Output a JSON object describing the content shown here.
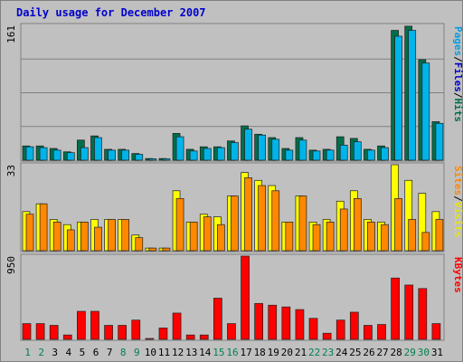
{
  "chart_data": {
    "title": "Daily usage for December 2007",
    "type": "bar",
    "categories": [
      "1",
      "2",
      "3",
      "4",
      "5",
      "6",
      "7",
      "8",
      "9",
      "10",
      "11",
      "12",
      "13",
      "14",
      "15",
      "16",
      "17",
      "18",
      "19",
      "20",
      "21",
      "22",
      "23",
      "24",
      "25",
      "26",
      "27",
      "28",
      "29",
      "30",
      "31"
    ],
    "weekend_days": [
      "1",
      "2",
      "8",
      "9",
      "15",
      "16",
      "22",
      "23",
      "29",
      "30"
    ],
    "colors": {
      "background": "#c0c0c0",
      "panel": "#c0c0c0",
      "gridline": "#808080",
      "title": "#0000cc",
      "tick_weekday": "#000000",
      "tick_weekend": "#00804d",
      "hits": "#006e4b",
      "files": "#00a0e6",
      "pages": "#00c0ff",
      "visits": "#ffff00",
      "sites": "#ff8800",
      "kbytes": "#ff0000"
    },
    "panels": [
      {
        "id": "hits-files-pages",
        "max_label": "161",
        "ymax": 161,
        "legend": [
          {
            "text": "Pages",
            "color": "#00a0e6"
          },
          {
            "text": "/",
            "color": "#000000"
          },
          {
            "text": "Files",
            "color": "#0000cc"
          },
          {
            "text": "/",
            "color": "#000000"
          },
          {
            "text": "Hits",
            "color": "#006e4b"
          }
        ],
        "series": [
          {
            "name": "Hits",
            "color": "#006e4b",
            "values": [
              17,
              17,
              14,
              10,
              24,
              29,
              13,
              13,
              8,
              2,
              2,
              32,
              13,
              16,
              16,
              23,
              41,
              31,
              27,
              14,
              27,
              12,
              13,
              28,
              26,
              13,
              17,
              155,
              160,
              120,
              46
            ]
          },
          {
            "name": "Files",
            "color": "#00b4ea",
            "values": [
              16,
              15,
              12,
              9,
              15,
              27,
              12,
              12,
              7,
              1,
              1,
              28,
              11,
              14,
              15,
              21,
              37,
              30,
              25,
              12,
              24,
              11,
              12,
              18,
              22,
              12,
              15,
              148,
              155,
              116,
              44
            ]
          }
        ]
      },
      {
        "id": "visits-sites",
        "max_label": "33",
        "ymax": 33,
        "legend": [
          {
            "text": "Sites",
            "color": "#ff8800"
          },
          {
            "text": "/",
            "color": "#000000"
          },
          {
            "text": "Visits",
            "color": "#e6e600"
          }
        ],
        "series": [
          {
            "name": "Visits",
            "color": "#ffff00",
            "values": [
              15,
              18,
              12,
              10,
              11,
              12,
              12,
              12,
              6,
              1,
              1,
              23,
              11,
              14,
              13,
              21,
              30,
              27,
              25,
              11,
              21,
              11,
              12,
              19,
              23,
              12,
              11,
              33,
              27,
              22,
              15
            ]
          },
          {
            "name": "Sites",
            "color": "#ff8800",
            "values": [
              14,
              18,
              11,
              8,
              11,
              9,
              12,
              12,
              5,
              1,
              1,
              20,
              11,
              13,
              10,
              21,
              28,
              25,
              23,
              11,
              21,
              10,
              11,
              16,
              20,
              11,
              10,
              20,
              12,
              7,
              12
            ]
          }
        ]
      },
      {
        "id": "kbytes",
        "max_label": "950",
        "ymax": 950,
        "legend": [
          {
            "text": "KBytes",
            "color": "#ff0000"
          }
        ],
        "series": [
          {
            "name": "KBytes",
            "color": "#ff0000",
            "values": [
              180,
              180,
              160,
              50,
              320,
              320,
              160,
              160,
              220,
              0,
              130,
              300,
              50,
              50,
              470,
              180,
              950,
              410,
              390,
              370,
              340,
              240,
              70,
              220,
              310,
              160,
              170,
              700,
              620,
              580,
              180
            ]
          }
        ]
      }
    ]
  }
}
